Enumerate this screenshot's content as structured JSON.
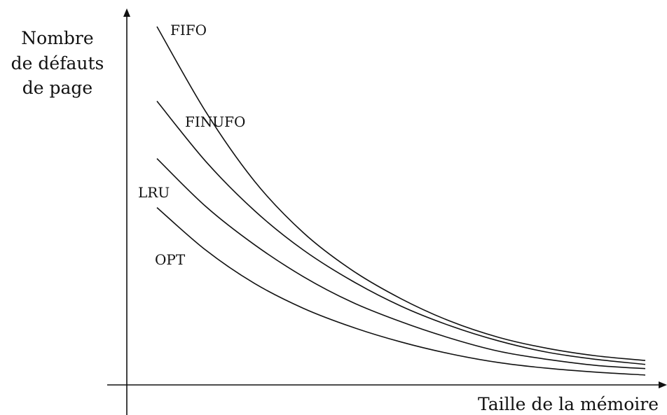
{
  "chart_data": {
    "type": "line",
    "title": "",
    "ylabel_lines": [
      "Nombre",
      "de défauts",
      "de page"
    ],
    "xlabel": "Taille de la mémoire",
    "grid": false,
    "x": [
      0,
      0.1,
      0.2,
      0.3,
      0.4,
      0.5,
      0.6,
      0.7,
      0.8,
      0.9,
      1.0
    ],
    "series": [
      {
        "name": "FIFO",
        "values": [
          1.0,
          0.76,
          0.564,
          0.419,
          0.313,
          0.233,
          0.17,
          0.124,
          0.093,
          0.072,
          0.059
        ]
      },
      {
        "name": "FINUFO",
        "values": [
          0.79,
          0.62,
          0.481,
          0.37,
          0.283,
          0.212,
          0.157,
          0.114,
          0.082,
          0.062,
          0.048
        ]
      },
      {
        "name": "LRU",
        "values": [
          0.628,
          0.493,
          0.385,
          0.295,
          0.223,
          0.168,
          0.122,
          0.085,
          0.062,
          0.045,
          0.036
        ]
      },
      {
        "name": "OPT",
        "values": [
          0.49,
          0.37,
          0.276,
          0.206,
          0.153,
          0.111,
          0.078,
          0.053,
          0.037,
          0.026,
          0.018
        ]
      }
    ]
  }
}
